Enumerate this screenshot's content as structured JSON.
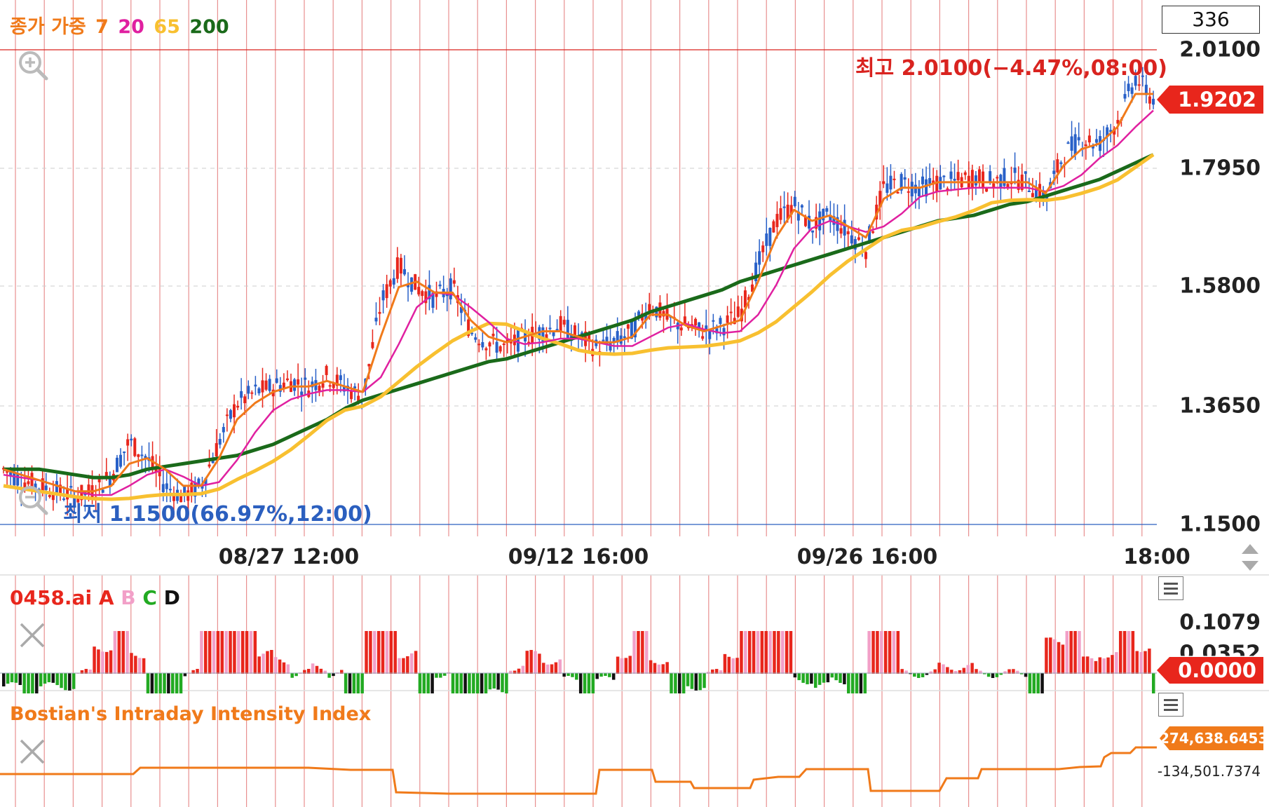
{
  "app": {
    "counter": "336"
  },
  "legend": {
    "label": "종가 가중",
    "periods": [
      {
        "value": "7",
        "color": "#f07a1a"
      },
      {
        "value": "20",
        "color": "#e020a0"
      },
      {
        "value": "65",
        "color": "#f8c030"
      },
      {
        "value": "200",
        "color": "#1a6a1a"
      }
    ]
  },
  "price_axis": {
    "labels": [
      "2.0100",
      "1.7950",
      "1.5800",
      "1.3650",
      "1.1500"
    ]
  },
  "time_axis": {
    "labels": [
      "08/27 12:00",
      "09/12 16:00",
      "09/26 16:00",
      "18:00"
    ]
  },
  "annotations": {
    "high": "최고 2.0100(−4.47%,08:00)",
    "low": "최저 1.1500(66.97%,12:00)"
  },
  "current_price": {
    "value": "1.9202",
    "color": "#e8261c"
  },
  "indicator1": {
    "name": "0458.ai",
    "lines": [
      {
        "label": "A",
        "color": "#e8261c"
      },
      {
        "label": "B",
        "color": "#f2a0c8"
      },
      {
        "label": "C",
        "color": "#22aa22"
      },
      {
        "label": "D",
        "color": "#111111"
      }
    ],
    "axis_labels": [
      "0.1079",
      "0.0352"
    ],
    "current": "0.0000"
  },
  "indicator2": {
    "name": "Bostian's Intraday Intensity Index",
    "current": "274,638.6453",
    "lower_label": "-134,501.7374"
  },
  "icons": {
    "zoom_in": "zoom-in-icon",
    "zoom_out": "zoom-out-icon",
    "close": "close-icon",
    "menu": "menu-icon",
    "scroll": "scroll-arrows-icon"
  },
  "chart_data": {
    "type": "candlestick",
    "ylim": [
      1.15,
      2.01
    ],
    "high": 2.01,
    "low": 1.15,
    "last": 1.9202,
    "close_approx": [
      1.25,
      1.23,
      1.22,
      1.21,
      1.2,
      1.21,
      1.24,
      1.3,
      1.27,
      1.22,
      1.2,
      1.22,
      1.3,
      1.37,
      1.39,
      1.4,
      1.41,
      1.4,
      1.42,
      1.4,
      1.38,
      1.55,
      1.62,
      1.58,
      1.56,
      1.58,
      1.5,
      1.48,
      1.47,
      1.49,
      1.5,
      1.51,
      1.49,
      1.47,
      1.48,
      1.5,
      1.55,
      1.52,
      1.51,
      1.5,
      1.51,
      1.53,
      1.62,
      1.7,
      1.73,
      1.69,
      1.71,
      1.68,
      1.65,
      1.76,
      1.77,
      1.76,
      1.77,
      1.77,
      1.78,
      1.77,
      1.78,
      1.77,
      1.74,
      1.82,
      1.85,
      1.84,
      1.88,
      1.96,
      1.92
    ],
    "ma7_approx": [
      1.25,
      1.24,
      1.23,
      1.22,
      1.21,
      1.21,
      1.22,
      1.26,
      1.27,
      1.25,
      1.22,
      1.22,
      1.27,
      1.34,
      1.37,
      1.39,
      1.4,
      1.4,
      1.41,
      1.4,
      1.39,
      1.49,
      1.58,
      1.59,
      1.57,
      1.57,
      1.52,
      1.49,
      1.48,
      1.49,
      1.5,
      1.5,
      1.49,
      1.48,
      1.48,
      1.49,
      1.53,
      1.53,
      1.51,
      1.5,
      1.51,
      1.52,
      1.59,
      1.67,
      1.72,
      1.7,
      1.71,
      1.69,
      1.67,
      1.74,
      1.76,
      1.76,
      1.77,
      1.77,
      1.77,
      1.77,
      1.77,
      1.77,
      1.75,
      1.8,
      1.83,
      1.84,
      1.87,
      1.93,
      1.93
    ],
    "ma200_approx": [
      1.25,
      1.25,
      1.25,
      1.245,
      1.24,
      1.235,
      1.235,
      1.24,
      1.25,
      1.255,
      1.26,
      1.265,
      1.27,
      1.275,
      1.285,
      1.295,
      1.31,
      1.325,
      1.34,
      1.36,
      1.375,
      1.385,
      1.395,
      1.405,
      1.415,
      1.425,
      1.435,
      1.445,
      1.45,
      1.46,
      1.47,
      1.48,
      1.49,
      1.5,
      1.51,
      1.52,
      1.535,
      1.545,
      1.555,
      1.565,
      1.575,
      1.59,
      1.6,
      1.61,
      1.62,
      1.63,
      1.64,
      1.65,
      1.66,
      1.67,
      1.68,
      1.69,
      1.7,
      1.705,
      1.71,
      1.72,
      1.73,
      1.735,
      1.745,
      1.755,
      1.765,
      1.775,
      1.79,
      1.805,
      1.82
    ]
  }
}
